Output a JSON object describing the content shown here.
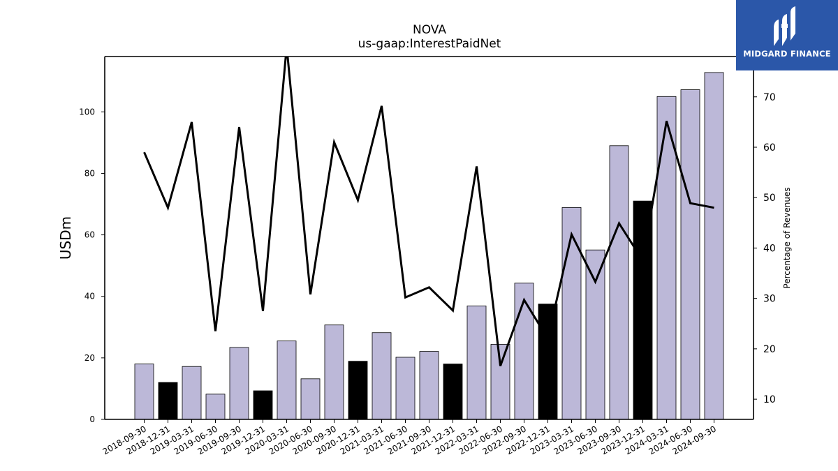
{
  "chart_data": {
    "type": "bar",
    "title": "NOVA",
    "subtitle": "us-gaap:InterestPaidNet",
    "ylabel": "USDm",
    "y2label": "Percentage of Revenues",
    "ylim": [
      0,
      118
    ],
    "y2lim": [
      6,
      78
    ],
    "yticks": [
      0,
      20,
      40,
      60,
      80,
      100
    ],
    "y2ticks": [
      10,
      20,
      30,
      40,
      50,
      60,
      70
    ],
    "categories": [
      "2018-09-30",
      "2018-12-31",
      "2019-03-31",
      "2019-06-30",
      "2019-09-30",
      "2019-12-31",
      "2020-03-31",
      "2020-06-30",
      "2020-09-30",
      "2020-12-31",
      "2021-03-31",
      "2021-06-30",
      "2021-09-30",
      "2021-12-31",
      "2022-03-31",
      "2022-06-30",
      "2022-09-30",
      "2022-12-31",
      "2023-03-31",
      "2023-06-30",
      "2023-09-30",
      "2023-12-31",
      "2024-03-31",
      "2024-06-30",
      "2024-09-30"
    ],
    "series": [
      {
        "kind": "bar",
        "values": [
          18,
          12,
          17.2,
          8.2,
          23.4,
          9.3,
          25.5,
          13.2,
          30.7,
          18.9,
          28.2,
          20.2,
          22.1,
          18,
          36.9,
          24.4,
          44.3,
          37.5,
          68.9,
          55.1,
          89,
          71,
          105,
          107.2,
          112.8
        ],
        "colors": [
          "#bcb8d8",
          "#000000",
          "#bcb8d8",
          "#bcb8d8",
          "#bcb8d8",
          "#000000",
          "#bcb8d8",
          "#bcb8d8",
          "#bcb8d8",
          "#000000",
          "#bcb8d8",
          "#bcb8d8",
          "#bcb8d8",
          "#000000",
          "#bcb8d8",
          "#bcb8d8",
          "#bcb8d8",
          "#000000",
          "#bcb8d8",
          "#bcb8d8",
          "#bcb8d8",
          "#000000",
          "#bcb8d8",
          "#bcb8d8",
          "#bcb8d8"
        ]
      },
      {
        "kind": "line",
        "axis": "right",
        "values": [
          59,
          48,
          65,
          23.5,
          64,
          27.5,
          80,
          30.8,
          61,
          49.5,
          68.2,
          30.2,
          32.2,
          27.6,
          56.2,
          16.6,
          29.7,
          22,
          42.7,
          33.3,
          44.9,
          37.5,
          65.2,
          48.9,
          48
        ]
      }
    ],
    "grid": false,
    "legend": "none",
    "bar_color": "#bcb8d8",
    "highlight_color": "#000000",
    "line_color": "#000000"
  },
  "logo": {
    "name": "MIDGARD FINANCE",
    "background": "#2b57a9"
  }
}
